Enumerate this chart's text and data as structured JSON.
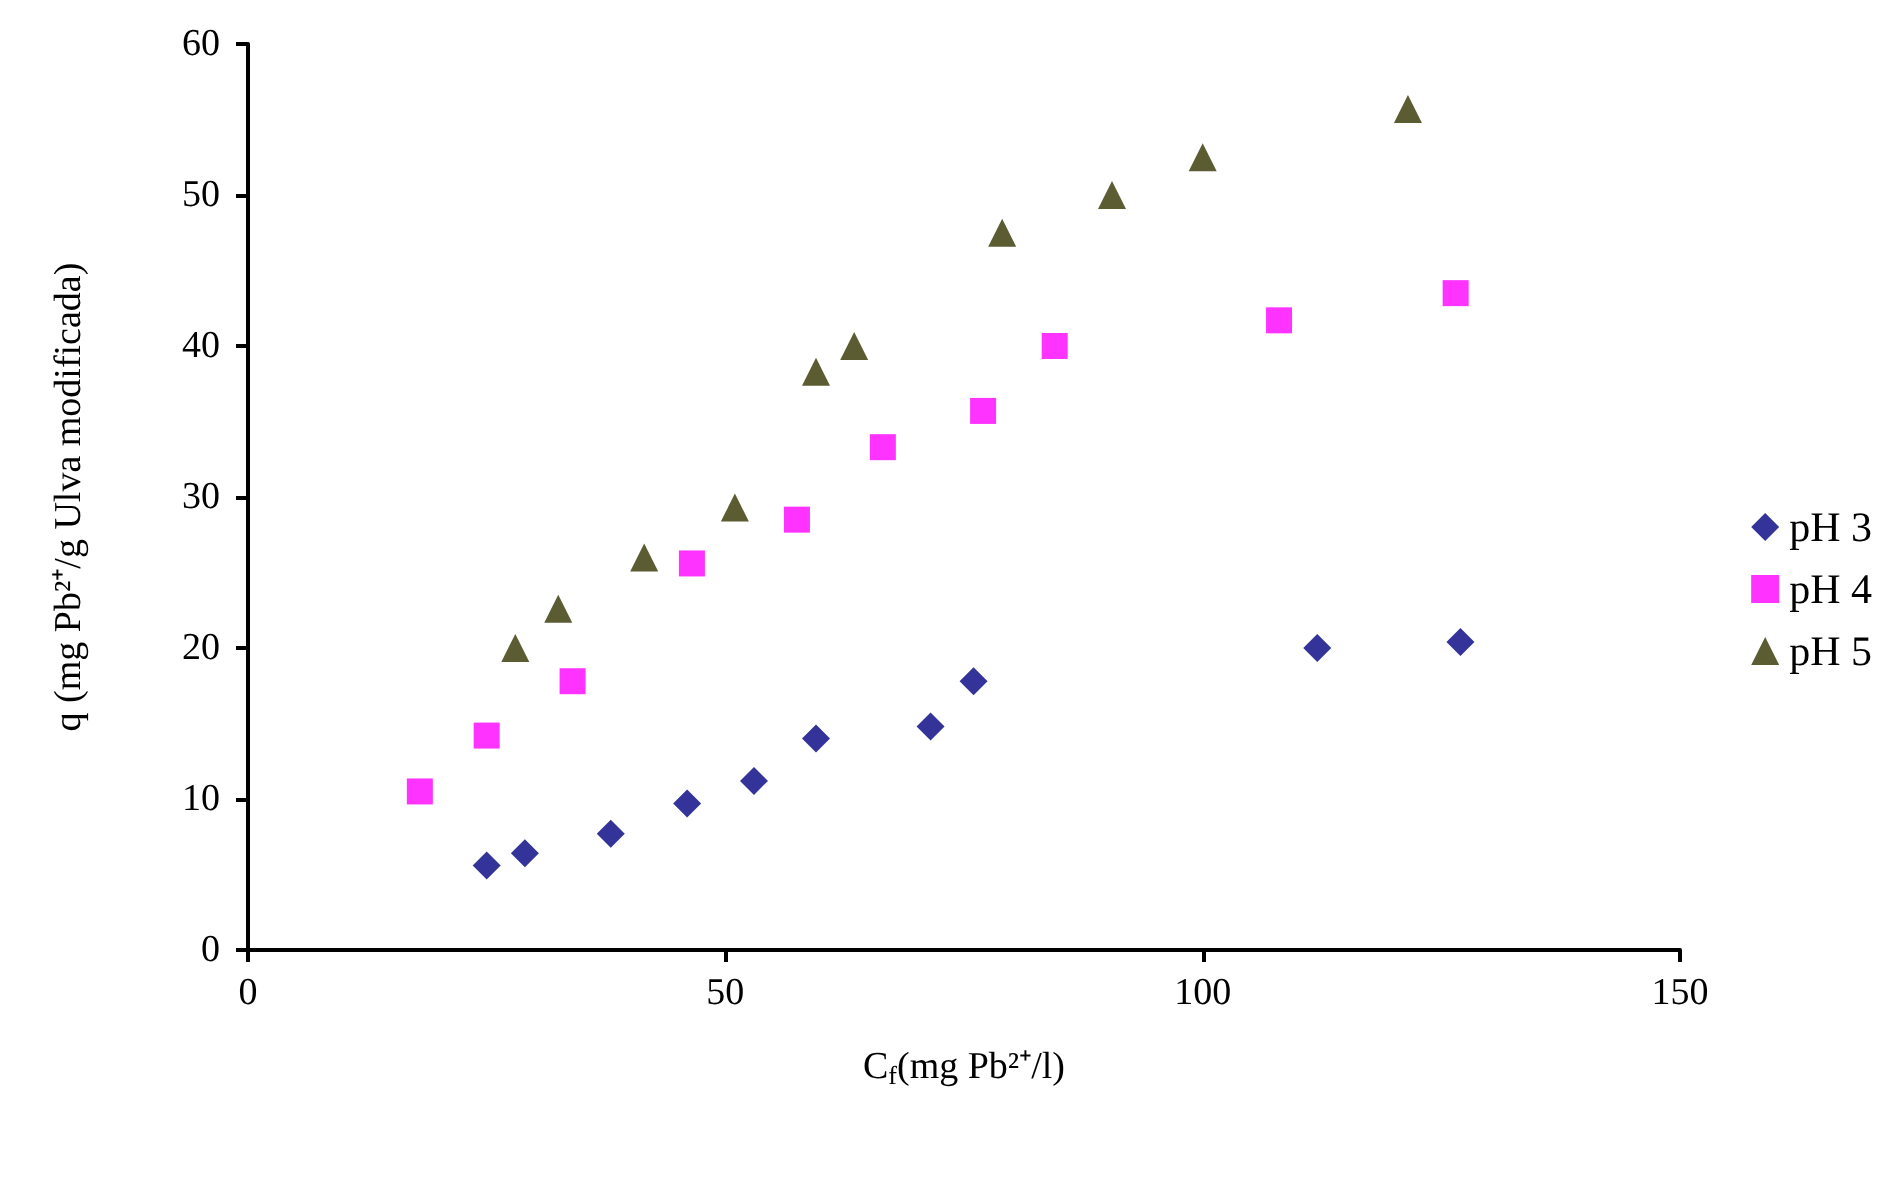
{
  "chart_data": {
    "type": "scatter",
    "xlabel": "C$_{f}$(mg Pb²⁺/l)",
    "ylabel": "q (mg Pb²⁺/g Ulva modificada)",
    "xlim": [
      0,
      150
    ],
    "xticks": [
      0,
      50,
      100,
      150
    ],
    "ylim": [
      0,
      60
    ],
    "yticks": [
      0,
      10,
      20,
      30,
      40,
      50,
      60
    ],
    "grid": false,
    "legend": "right",
    "series": [
      {
        "name": "pH 3",
        "color": "#000080",
        "marker": "diamond",
        "x": [
          25,
          29,
          38,
          46,
          53,
          59.5,
          71.5,
          76,
          112,
          127
        ],
        "values": [
          5.6,
          6.4,
          7.7,
          9.7,
          11.2,
          14,
          14.8,
          17.8,
          20,
          20.4
        ]
      },
      {
        "name": "pH 4",
        "color": "#ff00ff",
        "marker": "square",
        "x": [
          18,
          25,
          34,
          46.5,
          57.5,
          66.5,
          77,
          84.5,
          108,
          126.5
        ],
        "values": [
          10.5,
          14.2,
          17.8,
          25.6,
          28.5,
          33.3,
          35.7,
          40,
          41.7,
          43.5
        ]
      },
      {
        "name": "pH 5",
        "color": "#333300",
        "marker": "triangle",
        "x": [
          28,
          32.5,
          41.5,
          51,
          59.5,
          63.5,
          79,
          90.5,
          100,
          121.5
        ],
        "values": [
          20,
          22.6,
          26,
          29.3,
          38.3,
          40,
          47.5,
          50,
          52.5,
          55.7
        ]
      }
    ]
  }
}
